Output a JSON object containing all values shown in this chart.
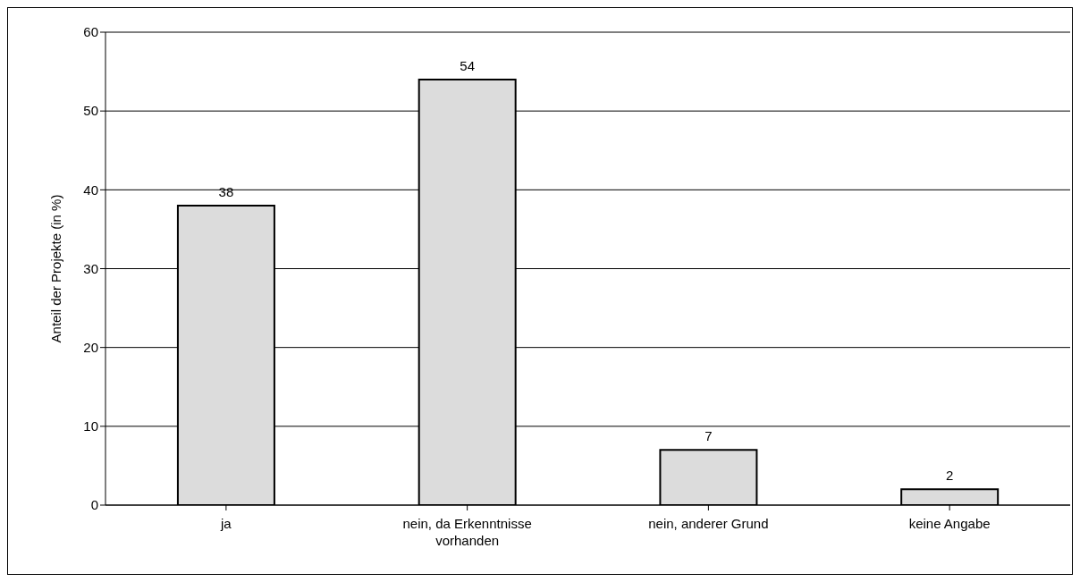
{
  "chart_data": {
    "type": "bar",
    "ylabel": "Anteil der Projekte (in %)",
    "categories": [
      "ja",
      "nein, da Erkenntnisse vorhanden",
      "nein, anderer Grund",
      "keine Angabe"
    ],
    "values": [
      38,
      54,
      7,
      2
    ],
    "color": "#dcdcdc",
    "ylim": [
      0,
      60
    ],
    "yticks": [
      0,
      10,
      20,
      30,
      40,
      50,
      60
    ],
    "grid": "y",
    "data_labels": true,
    "legend": false
  }
}
